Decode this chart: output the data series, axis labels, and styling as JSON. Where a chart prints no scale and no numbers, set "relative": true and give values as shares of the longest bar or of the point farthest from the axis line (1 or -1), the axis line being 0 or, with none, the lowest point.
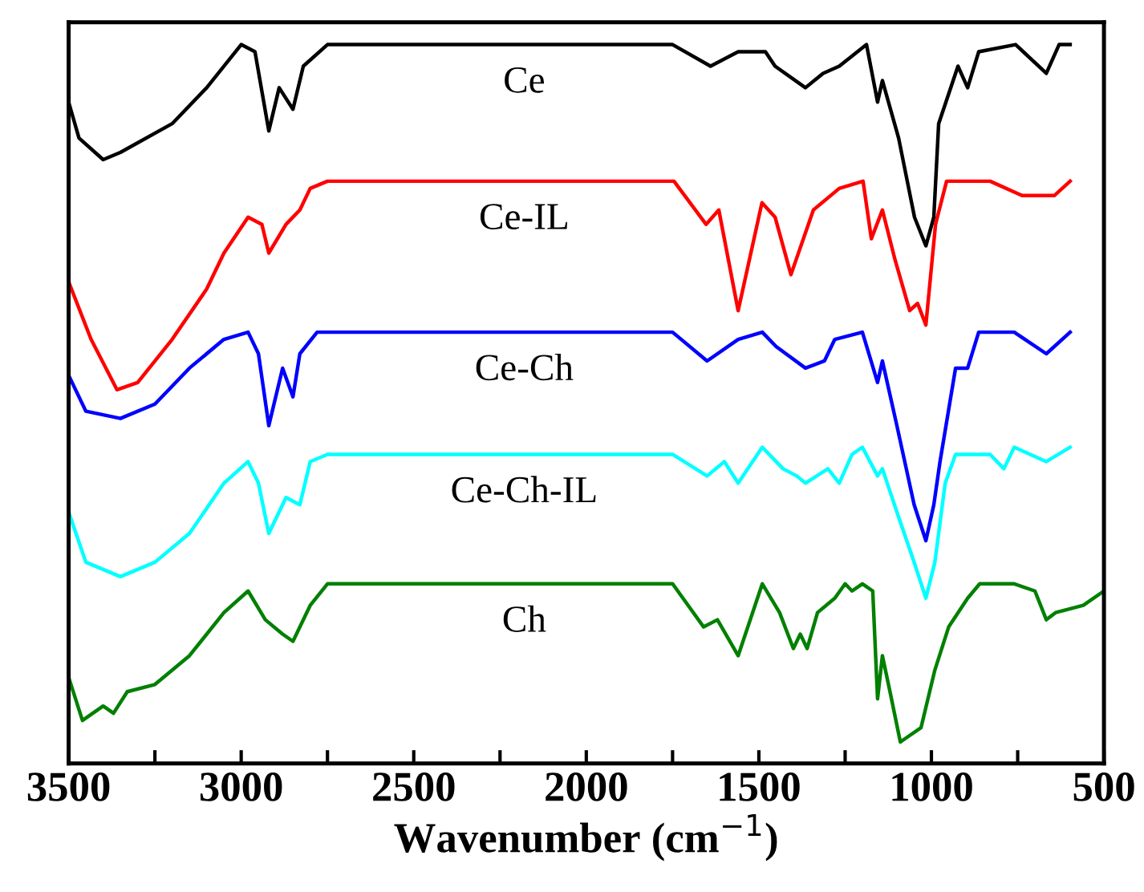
{
  "chart_data": {
    "type": "line",
    "relative": true,
    "xlabel": "Wavenumber (cm$^{−1}$)",
    "xlim": [
      3500,
      500
    ],
    "xticks": [
      3500,
      {
        "value": 3250,
        "label": null
      },
      3000,
      {
        "value": 2750,
        "label": null
      },
      2500,
      {
        "value": 2250,
        "label": null
      },
      2000,
      {
        "value": 1750,
        "label": null
      },
      1500,
      {
        "value": 1250,
        "label": null
      },
      1000,
      {
        "value": 750,
        "label": null
      },
      500
    ],
    "tick_labels": "x",
    "grid": false,
    "legend": false,
    "marker": "none",
    "line_style": "solid",
    "series": [
      {
        "name": "Ce",
        "color": "#000000",
        "x": [
          3500,
          3470,
          3400,
          3350,
          3200,
          3100,
          3000,
          2960,
          2920,
          2890,
          2850,
          2820,
          2750,
          2700,
          2000,
          1750,
          1640,
          1560,
          1481,
          1453,
          1365,
          1314,
          1267,
          1188,
          1156,
          1142,
          1095,
          1049,
          1016,
          993,
          979,
          923,
          895,
          863,
          756,
          667,
          630,
          598
        ],
        "values": [
          0.92,
          0.87,
          0.84,
          0.85,
          0.89,
          0.94,
          1.0,
          0.99,
          0.88,
          0.94,
          0.91,
          0.97,
          1.0,
          1.0,
          1.0,
          1.0,
          0.97,
          0.99,
          0.99,
          0.97,
          0.94,
          0.96,
          0.97,
          1.0,
          0.92,
          0.95,
          0.87,
          0.76,
          0.72,
          0.76,
          0.89,
          0.97,
          0.94,
          0.99,
          1.0,
          0.96,
          1.0,
          1.0
        ]
      },
      {
        "name": "Ce-IL",
        "color": "#ff0000",
        "x": [
          3500,
          3435,
          3360,
          3300,
          3200,
          3100,
          3050,
          2980,
          2940,
          2920,
          2870,
          2830,
          2800,
          2750,
          2000,
          1746,
          1653,
          1616,
          1560,
          1491,
          1453,
          1407,
          1342,
          1267,
          1198,
          1174,
          1142,
          1105,
          1063,
          1040,
          1016,
          988,
          956,
          830,
          737,
          644,
          598
        ],
        "values": [
          0.67,
          0.59,
          0.52,
          0.53,
          0.59,
          0.66,
          0.71,
          0.76,
          0.75,
          0.71,
          0.75,
          0.77,
          0.8,
          0.81,
          0.81,
          0.81,
          0.75,
          0.77,
          0.63,
          0.78,
          0.76,
          0.68,
          0.77,
          0.8,
          0.81,
          0.73,
          0.77,
          0.7,
          0.63,
          0.64,
          0.61,
          0.75,
          0.81,
          0.81,
          0.79,
          0.79,
          0.81
        ]
      },
      {
        "name": "Ce-Ch",
        "color": "#0000ff",
        "x": [
          3500,
          3450,
          3350,
          3250,
          3150,
          3050,
          2980,
          2950,
          2920,
          2880,
          2850,
          2830,
          2780,
          2000,
          1750,
          1650,
          1560,
          1490,
          1450,
          1365,
          1310,
          1280,
          1200,
          1156,
          1142,
          1100,
          1050,
          1016,
          993,
          975,
          930,
          895,
          863,
          760,
          667,
          598
        ],
        "values": [
          0.54,
          0.49,
          0.48,
          0.5,
          0.55,
          0.59,
          0.6,
          0.57,
          0.47,
          0.55,
          0.51,
          0.57,
          0.6,
          0.6,
          0.6,
          0.56,
          0.59,
          0.6,
          0.58,
          0.55,
          0.56,
          0.59,
          0.6,
          0.53,
          0.56,
          0.47,
          0.36,
          0.31,
          0.36,
          0.42,
          0.55,
          0.55,
          0.6,
          0.6,
          0.57,
          0.6
        ]
      },
      {
        "name": "Ce-Ch-IL",
        "color": "#00ffff",
        "x": [
          3500,
          3450,
          3350,
          3250,
          3150,
          3050,
          2980,
          2950,
          2920,
          2870,
          2830,
          2800,
          2750,
          2000,
          1750,
          1650,
          1600,
          1560,
          1490,
          1430,
          1390,
          1365,
          1300,
          1267,
          1230,
          1200,
          1156,
          1142,
          1100,
          1050,
          1016,
          990,
          960,
          930,
          830,
          790,
          760,
          667,
          598
        ],
        "values": [
          0.35,
          0.28,
          0.26,
          0.28,
          0.32,
          0.39,
          0.42,
          0.39,
          0.32,
          0.37,
          0.36,
          0.42,
          0.43,
          0.43,
          0.43,
          0.4,
          0.42,
          0.39,
          0.44,
          0.41,
          0.4,
          0.39,
          0.41,
          0.39,
          0.43,
          0.44,
          0.4,
          0.41,
          0.35,
          0.28,
          0.23,
          0.28,
          0.39,
          0.43,
          0.43,
          0.41,
          0.44,
          0.42,
          0.44
        ]
      },
      {
        "name": "Ch",
        "color": "#008000",
        "x": [
          3500,
          3460,
          3400,
          3370,
          3330,
          3250,
          3150,
          3050,
          2980,
          2930,
          2880,
          2850,
          2800,
          2750,
          2000,
          1750,
          1660,
          1620,
          1560,
          1490,
          1440,
          1400,
          1380,
          1360,
          1330,
          1280,
          1250,
          1230,
          1200,
          1170,
          1156,
          1142,
          1120,
          1090,
          1060,
          1030,
          990,
          950,
          895,
          860,
          760,
          700,
          667,
          640,
          560,
          500
        ],
        "values": [
          0.12,
          0.06,
          0.08,
          0.07,
          0.1,
          0.11,
          0.15,
          0.21,
          0.24,
          0.2,
          0.18,
          0.17,
          0.22,
          0.25,
          0.25,
          0.25,
          0.19,
          0.2,
          0.15,
          0.25,
          0.21,
          0.16,
          0.18,
          0.16,
          0.21,
          0.23,
          0.25,
          0.24,
          0.25,
          0.24,
          0.09,
          0.15,
          0.1,
          0.03,
          0.04,
          0.05,
          0.13,
          0.19,
          0.23,
          0.25,
          0.25,
          0.24,
          0.2,
          0.21,
          0.22,
          0.24
        ]
      }
    ]
  }
}
